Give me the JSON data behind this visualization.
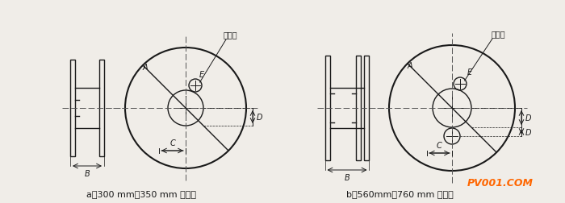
{
  "bg_color": "#f0ede8",
  "line_color": "#1a1a1a",
  "centerline_color": "#555555",
  "label_a": "a）300 mm、350 mm 焊丝盘",
  "label_b": "b）560mm、760 mm 焊丝盘",
  "label_drive": "驱动孔",
  "label_A": "A",
  "label_B": "B",
  "label_C": "C",
  "label_D": "D",
  "label_E": "E",
  "watermark": "PV001.COM",
  "watermark_color": "#ff6600"
}
